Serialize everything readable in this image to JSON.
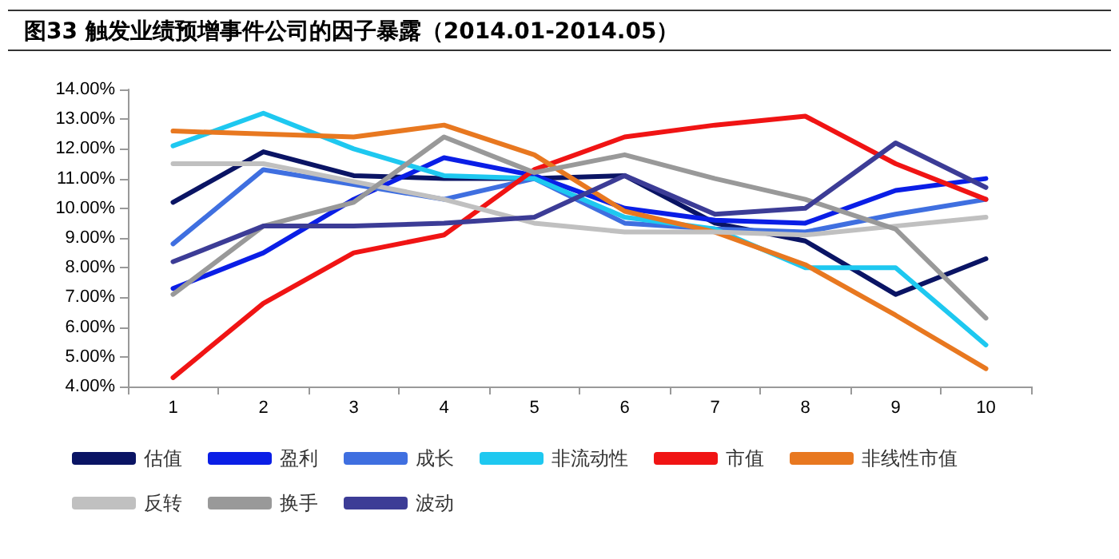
{
  "chart_data": {
    "type": "line",
    "title": "图33 触发业绩预增事件公司的因子暴露（2014.01-2014.05）",
    "categories": [
      "1",
      "2",
      "3",
      "4",
      "5",
      "6",
      "7",
      "8",
      "9",
      "10"
    ],
    "ylim": [
      4,
      14
    ],
    "yticks": [
      {
        "value": 4,
        "label": "4.00%"
      },
      {
        "value": 5,
        "label": "5.00%"
      },
      {
        "value": 6,
        "label": "6.00%"
      },
      {
        "value": 7,
        "label": "7.00%"
      },
      {
        "value": 8,
        "label": "8.00%"
      },
      {
        "value": 9,
        "label": "9.00%"
      },
      {
        "value": 10,
        "label": "10.00%"
      },
      {
        "value": 11,
        "label": "11.00%"
      },
      {
        "value": 12,
        "label": "12.00%"
      },
      {
        "value": 13,
        "label": "13.00%"
      },
      {
        "value": 14,
        "label": "14.00%"
      }
    ],
    "grid": false,
    "legend": "bottom",
    "marker": "none",
    "line_style": "solid",
    "series": [
      {
        "name": "估值",
        "color": "#0a1464",
        "values": [
          10.2,
          11.9,
          11.1,
          11.0,
          11.0,
          11.1,
          9.5,
          8.9,
          7.1,
          8.3
        ]
      },
      {
        "name": "盈利",
        "color": "#0a1ee6",
        "values": [
          7.3,
          8.5,
          10.3,
          11.7,
          11.1,
          10.0,
          9.6,
          9.5,
          10.6,
          11.0
        ]
      },
      {
        "name": "成长",
        "color": "#3f6fe0",
        "values": [
          8.8,
          11.3,
          10.8,
          10.3,
          11.0,
          9.5,
          9.3,
          9.2,
          9.8,
          10.3
        ]
      },
      {
        "name": "非流动性",
        "color": "#1ec8f0",
        "values": [
          12.1,
          13.2,
          12.0,
          11.1,
          11.0,
          9.7,
          9.3,
          8.0,
          8.0,
          5.4
        ]
      },
      {
        "name": "市值",
        "color": "#f01414",
        "values": [
          4.3,
          6.8,
          8.5,
          9.1,
          11.3,
          12.4,
          12.8,
          13.1,
          11.5,
          10.3
        ]
      },
      {
        "name": "非线性市值",
        "color": "#e87820",
        "values": [
          12.6,
          12.5,
          12.4,
          12.8,
          11.8,
          9.9,
          9.2,
          8.1,
          6.4,
          4.6
        ]
      },
      {
        "name": "反转",
        "color": "#c0c0c0",
        "values": [
          11.5,
          11.5,
          10.9,
          10.3,
          9.5,
          9.2,
          9.2,
          9.1,
          9.4,
          9.7
        ]
      },
      {
        "name": "换手",
        "color": "#999999",
        "values": [
          7.1,
          9.4,
          10.2,
          12.4,
          11.2,
          11.8,
          11.0,
          10.3,
          9.3,
          6.3
        ]
      },
      {
        "name": "波动",
        "color": "#3c3c96",
        "values": [
          8.2,
          9.4,
          9.4,
          9.5,
          9.7,
          11.1,
          9.8,
          10.0,
          12.2,
          10.7
        ]
      }
    ]
  }
}
